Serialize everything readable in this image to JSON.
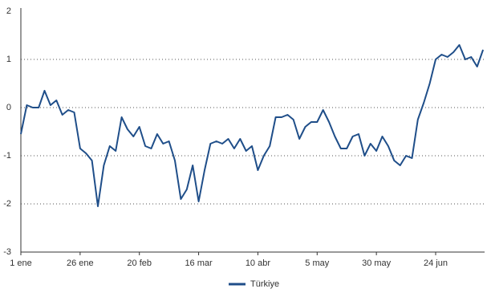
{
  "chart_data": {
    "type": "line",
    "categories": [
      "1 ene",
      null,
      null,
      null,
      null,
      null,
      null,
      null,
      null,
      null,
      "26 ene",
      null,
      null,
      null,
      null,
      null,
      null,
      null,
      null,
      null,
      "20 feb",
      null,
      null,
      null,
      null,
      null,
      null,
      null,
      null,
      null,
      "16 mar",
      null,
      null,
      null,
      null,
      null,
      null,
      null,
      null,
      null,
      "10 abr",
      null,
      null,
      null,
      null,
      null,
      null,
      null,
      null,
      null,
      "5 may",
      null,
      null,
      null,
      null,
      null,
      null,
      null,
      null,
      null,
      "30 may",
      null,
      null,
      null,
      null,
      null,
      null,
      null,
      null,
      null,
      "24 jun",
      null,
      null,
      null,
      null,
      null,
      null,
      null,
      null
    ],
    "series": [
      {
        "name": "Türkiye",
        "color": "#1f4e89",
        "values": [
          -0.55,
          0.05,
          0.0,
          0.0,
          0.35,
          0.05,
          0.15,
          -0.15,
          -0.05,
          -0.1,
          -0.85,
          -0.95,
          -1.1,
          -2.05,
          -1.2,
          -0.8,
          -0.9,
          -0.2,
          -0.45,
          -0.6,
          -0.4,
          -0.8,
          -0.85,
          -0.55,
          -0.75,
          -0.7,
          -1.1,
          -1.9,
          -1.7,
          -1.2,
          -1.95,
          -1.3,
          -0.75,
          -0.7,
          -0.75,
          -0.65,
          -0.85,
          -0.65,
          -0.9,
          -0.8,
          -1.3,
          -1.0,
          -0.8,
          -0.2,
          -0.2,
          -0.15,
          -0.25,
          -0.65,
          -0.4,
          -0.3,
          -0.3,
          -0.05,
          -0.3,
          -0.6,
          -0.85,
          -0.85,
          -0.6,
          -0.55,
          -1.0,
          -0.75,
          -0.9,
          -0.6,
          -0.8,
          -1.1,
          -1.2,
          -1.0,
          -1.05,
          -0.25,
          0.1,
          0.5,
          1.0,
          1.1,
          1.05,
          1.15,
          1.3,
          1.0,
          1.05,
          0.85,
          1.2
        ]
      }
    ],
    "ylim": [
      -3,
      2
    ],
    "yticks": [
      -3,
      -2,
      -1,
      0,
      1,
      2
    ],
    "grid": true,
    "legend": "bottom"
  }
}
